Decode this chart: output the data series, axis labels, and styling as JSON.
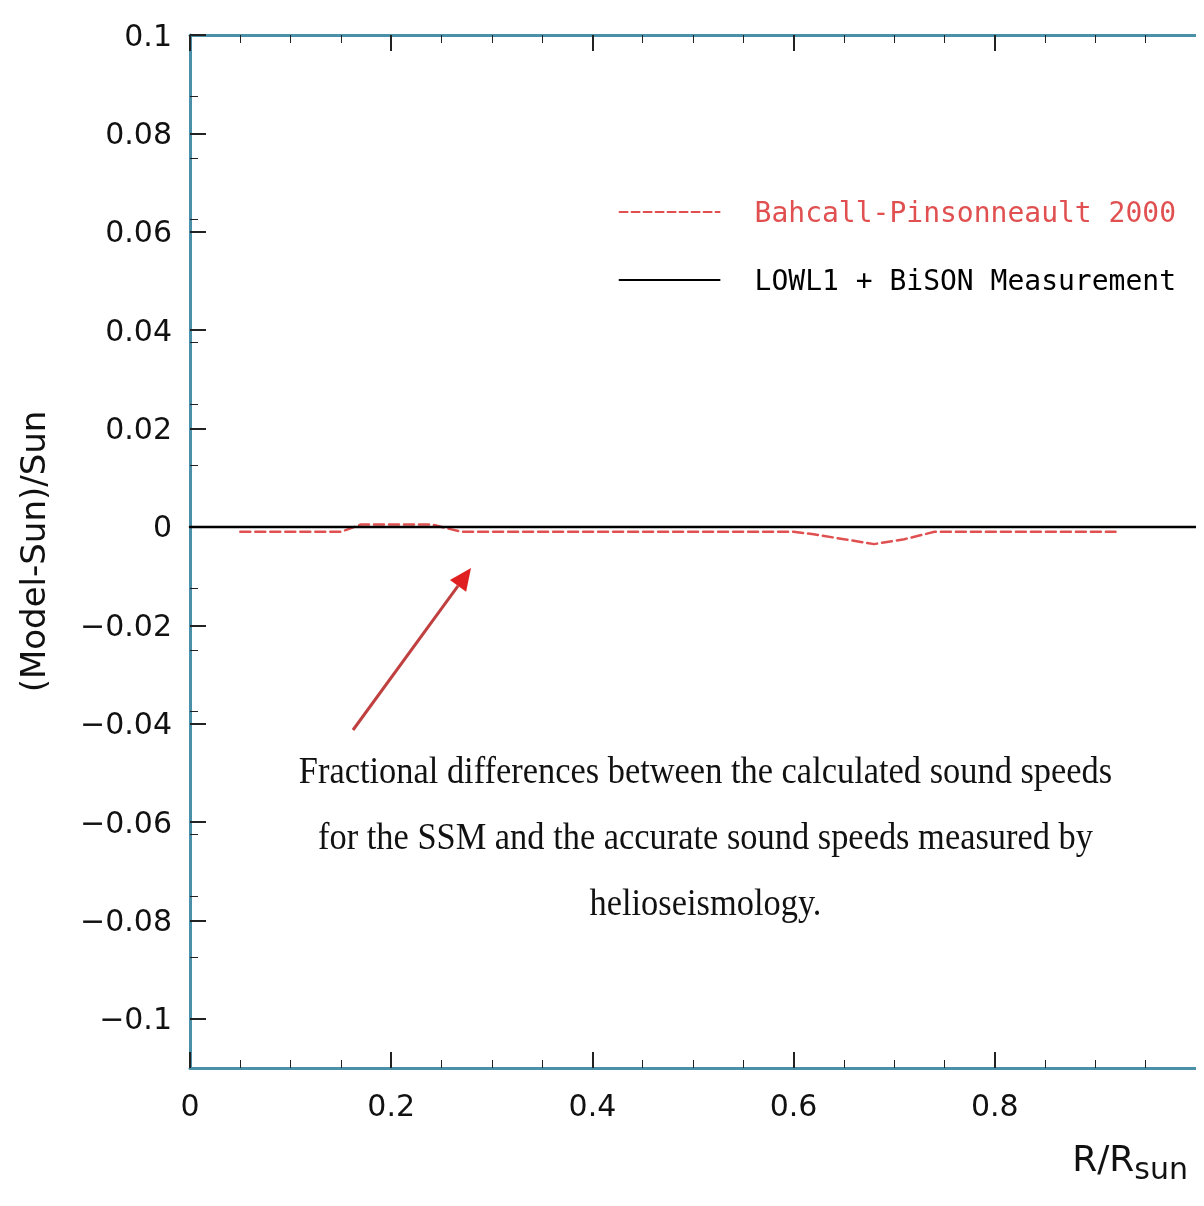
{
  "chart_data": {
    "type": "line",
    "xlabel": "R/R$_{sun}$",
    "ylabel": "(Model-Sun)/Sun",
    "xlim": [
      0,
      1
    ],
    "xticks": [
      0,
      0.2,
      0.4,
      0.6,
      0.8
    ],
    "ylim": [
      -0.11,
      0.1
    ],
    "yticks": [
      -0.1,
      -0.08,
      -0.06,
      -0.04,
      -0.02,
      0,
      0.02,
      0.04,
      0.06,
      0.08,
      0.1
    ],
    "grid": false,
    "legend": "top right",
    "marker": "none",
    "series": [
      {
        "name": "Bahcall-Pinsonneault 2000",
        "color": "#e05050",
        "line_style": "dashed",
        "x": [
          0.05,
          0.1,
          0.15,
          0.17,
          0.2,
          0.24,
          0.27,
          0.3,
          0.4,
          0.5,
          0.6,
          0.62,
          0.65,
          0.68,
          0.71,
          0.74,
          0.8,
          0.9,
          0.92
        ],
        "values": [
          -0.001,
          -0.001,
          -0.001,
          0.0005,
          0.0005,
          0.0005,
          -0.001,
          -0.001,
          -0.001,
          -0.001,
          -0.001,
          -0.0015,
          -0.0025,
          -0.0035,
          -0.0025,
          -0.001,
          -0.001,
          -0.001,
          -0.001
        ]
      },
      {
        "name": "LOWL1 + BiSON Measurement",
        "color": "#000000",
        "line_style": "solid",
        "x": [
          0,
          1
        ],
        "values": [
          0,
          0
        ]
      }
    ],
    "annotations": [
      "Fractional differences between the calculated sound speeds for the SSM and the accurate sound speeds measured by helioseismology."
    ]
  }
}
